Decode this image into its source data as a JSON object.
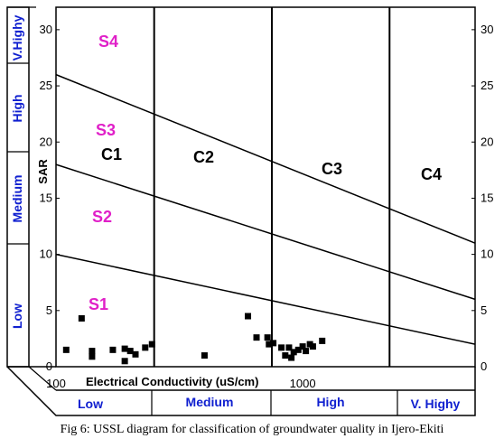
{
  "caption": "Fig 6: USSL diagram for classification of groundwater quality in Ijero-Ekiti",
  "chart_data": {
    "type": "scatter",
    "title": "",
    "xlabel": "Electrical Conductivity (uS/cm)",
    "ylabel": "SAR",
    "x_scale": "log",
    "xlim": [
      100,
      5000
    ],
    "ylim": [
      0,
      32
    ],
    "x_ticks": [
      "100",
      "1000"
    ],
    "y_ticks": [
      "0",
      "5",
      "10",
      "15",
      "20",
      "25",
      "30"
    ],
    "salinity_boundaries": [
      250,
      750,
      2250
    ],
    "salinity_classes": [
      "C1",
      "C2",
      "C3",
      "C4"
    ],
    "salinity_zones": [
      "Low",
      "Medium",
      "High",
      "V. Highy"
    ],
    "sodium_classes": [
      "S1",
      "S2",
      "S3",
      "S4"
    ],
    "sodium_zones": [
      "Low",
      "Medium",
      "High",
      "V.Highy"
    ],
    "sodium_boundaries": [
      {
        "name": "S1-S2",
        "points": [
          [
            100,
            10
          ],
          [
            5000,
            2
          ]
        ]
      },
      {
        "name": "S2-S3",
        "points": [
          [
            100,
            18
          ],
          [
            5000,
            6
          ]
        ]
      },
      {
        "name": "S3-S4",
        "points": [
          [
            100,
            26
          ],
          [
            5000,
            11
          ]
        ]
      }
    ],
    "points": [
      {
        "x": 110,
        "y": 1.5
      },
      {
        "x": 127,
        "y": 4.3
      },
      {
        "x": 140,
        "y": 1.4
      },
      {
        "x": 140,
        "y": 0.9
      },
      {
        "x": 170,
        "y": 1.5
      },
      {
        "x": 190,
        "y": 1.6
      },
      {
        "x": 190,
        "y": 0.5
      },
      {
        "x": 200,
        "y": 1.4
      },
      {
        "x": 210,
        "y": 1.1
      },
      {
        "x": 230,
        "y": 1.7
      },
      {
        "x": 245,
        "y": 2.0
      },
      {
        "x": 400,
        "y": 1.0
      },
      {
        "x": 650,
        "y": 2.6
      },
      {
        "x": 600,
        "y": 4.5
      },
      {
        "x": 720,
        "y": 2.6
      },
      {
        "x": 730,
        "y": 2.0
      },
      {
        "x": 760,
        "y": 2.1
      },
      {
        "x": 820,
        "y": 1.7
      },
      {
        "x": 850,
        "y": 1.0
      },
      {
        "x": 880,
        "y": 1.7
      },
      {
        "x": 900,
        "y": 0.8
      },
      {
        "x": 920,
        "y": 1.3
      },
      {
        "x": 960,
        "y": 1.5
      },
      {
        "x": 1000,
        "y": 1.8
      },
      {
        "x": 1030,
        "y": 1.4
      },
      {
        "x": 1070,
        "y": 2.0
      },
      {
        "x": 1100,
        "y": 1.8
      },
      {
        "x": 1200,
        "y": 2.3
      }
    ]
  }
}
